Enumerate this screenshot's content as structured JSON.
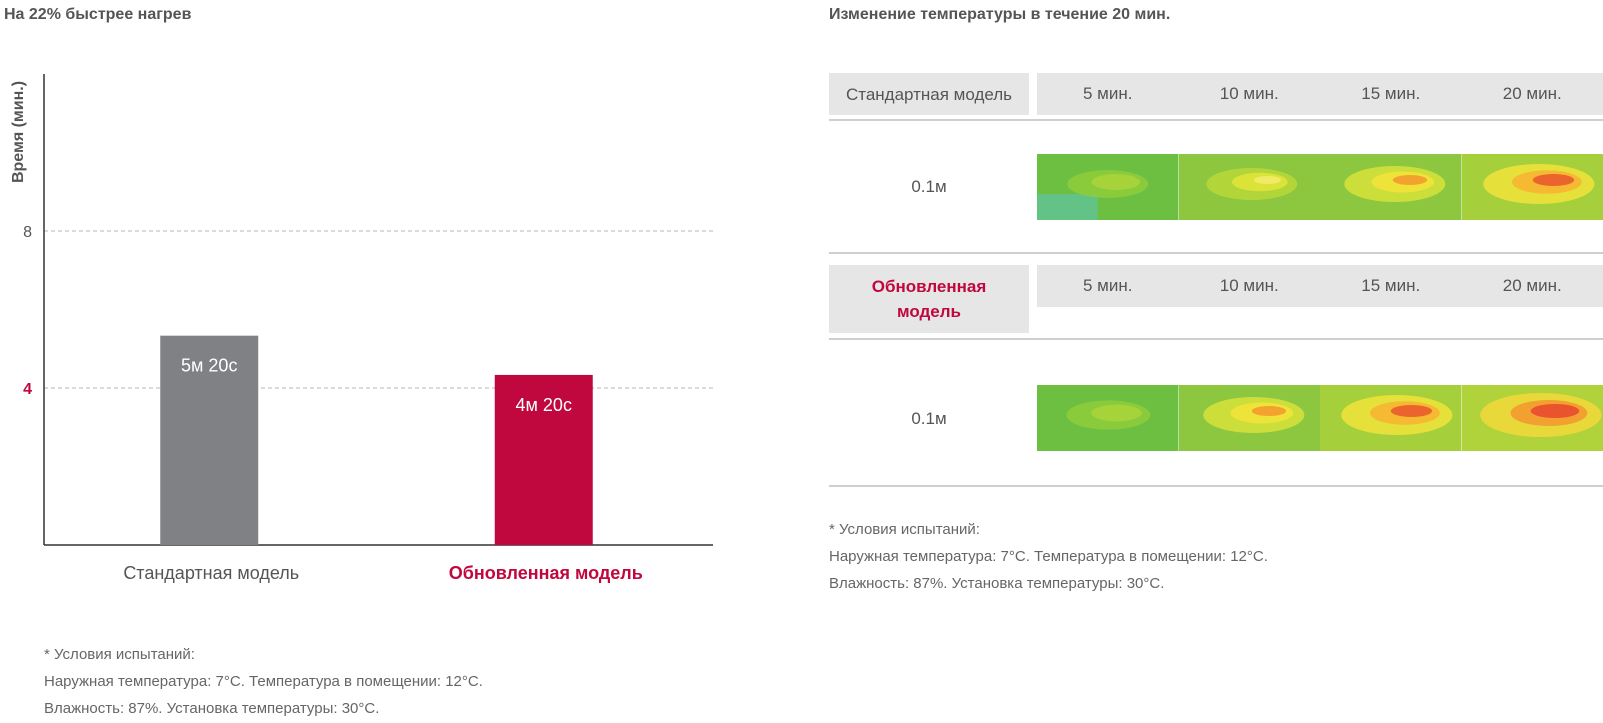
{
  "left_title": "На 22% быстрее нагрев",
  "right_title": "Изменение температуры в течение 20 мин.",
  "colors": {
    "standard_bar": "#808184",
    "updated_bar": "#c0073e",
    "accent_text": "#c0073e",
    "grid": "#b5b5b5",
    "axis": "#333333",
    "header_bg": "#e6e6e7"
  },
  "chart_data": {
    "type": "bar",
    "ylabel": "Время (мин.)",
    "xlabel": "",
    "ylim": [
      0,
      12
    ],
    "yticks": [
      {
        "value": 8,
        "label": "8",
        "highlight": false
      },
      {
        "value": 4,
        "label": "4",
        "highlight": true
      }
    ],
    "grid": true,
    "categories": [
      "Стандартная модель",
      "Обновленная модель"
    ],
    "values": [
      5.333,
      4.333
    ],
    "data_labels": [
      "5м 20с",
      "4м 20с"
    ],
    "category_highlight": [
      false,
      true
    ]
  },
  "table": {
    "models": [
      {
        "name": "Стандартная модель",
        "highlight": false,
        "times": [
          "5 мин.",
          "10 мин.",
          "15 мин.",
          "20 мин."
        ],
        "height_label": "0.1м",
        "heat_levels": [
          0,
          1,
          2,
          3
        ]
      },
      {
        "name": "Обновленная модель",
        "highlight": true,
        "times": [
          "5 мин.",
          "10 мин.",
          "15 мин.",
          "20 мин."
        ],
        "height_label": "0.1м",
        "heat_levels": [
          0.3,
          2,
          3,
          4
        ]
      }
    ]
  },
  "notes": {
    "line1": "* Условия испытаний:",
    "line2": "Наружная температура: 7°C. Температура в помещении: 12°C.",
    "line3": "Влажность: 87%. Установка температуры: 30°C."
  }
}
